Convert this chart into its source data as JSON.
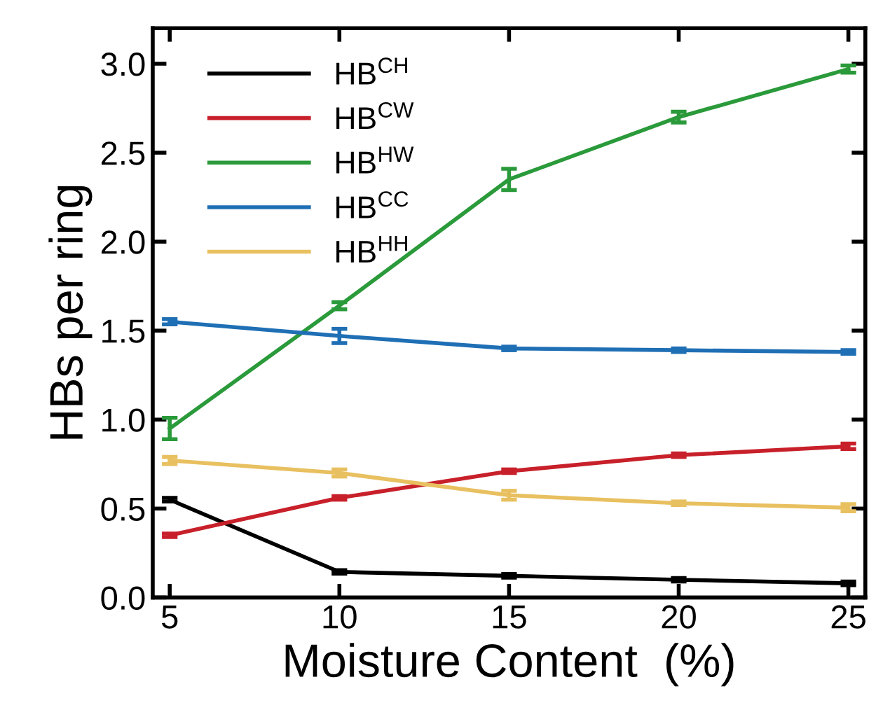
{
  "chart_data": {
    "type": "line",
    "xlabel": "Moisture Content  (%)",
    "ylabel": "HBs per ring",
    "x": [
      5,
      10,
      15,
      20,
      25
    ],
    "xlim": [
      4.5,
      25.5
    ],
    "xticks": [
      5,
      10,
      15,
      20,
      25
    ],
    "ylim": [
      0,
      3.2
    ],
    "yticks": [
      {
        "value": 0,
        "label": "0.0"
      },
      0.5,
      {
        "value": 1,
        "label": "1.0"
      },
      1.5,
      {
        "value": 2,
        "label": "2.0"
      },
      2.5,
      {
        "value": 3,
        "label": "3.0"
      }
    ],
    "grid": false,
    "legend": "top left",
    "marker": "none",
    "line_style": "solid",
    "series": [
      {
        "name": "HB$^{CH}$",
        "color": "#000000",
        "values": [
          0.55,
          0.144,
          0.122,
          0.1,
          0.08
        ],
        "errors": [
          0.01,
          0.01,
          0.01,
          0.01,
          0.01
        ]
      },
      {
        "name": "HB$^{CW}$",
        "color": "#c8202a",
        "values": [
          0.35,
          0.56,
          0.71,
          0.8,
          0.85
        ],
        "errors": [
          0.01,
          0.01,
          0.01,
          0.01,
          0.015
        ]
      },
      {
        "name": "HB$^{HW}$",
        "color": "#2a9a3a",
        "values": [
          0.95,
          1.64,
          2.35,
          2.7,
          2.97
        ],
        "errors": [
          0.06,
          0.02,
          0.06,
          0.03,
          0.02
        ]
      },
      {
        "name": "HB$^{CC}$",
        "color": "#1f6fb5",
        "values": [
          1.55,
          1.47,
          1.4,
          1.39,
          1.38
        ],
        "errors": [
          0.015,
          0.04,
          0.01,
          0.01,
          0.01
        ]
      },
      {
        "name": "HB$^{HH}$",
        "color": "#e8c060",
        "values": [
          0.77,
          0.7,
          0.575,
          0.53,
          0.505
        ],
        "errors": [
          0.02,
          0.02,
          0.025,
          0.01,
          0.02
        ]
      }
    ]
  }
}
